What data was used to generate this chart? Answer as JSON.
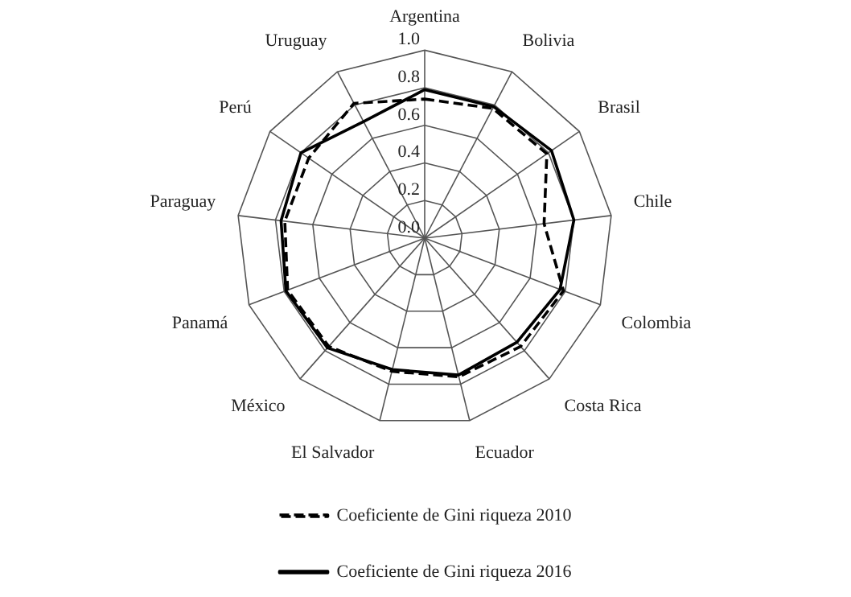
{
  "chart_data": {
    "type": "radar",
    "categories": [
      "Argentina",
      "Bolivia",
      "Brasil",
      "Chile",
      "Colombia",
      "Costa Rica",
      "Ecuador",
      "El Salvador",
      "México",
      "Panamá",
      "Paraguay",
      "Perú",
      "Uruguay"
    ],
    "series": [
      {
        "name": "Coeficiente de Gini riqueza 2010",
        "color": "#000000",
        "line_style": "dashed",
        "values": [
          0.74,
          0.78,
          0.79,
          0.64,
          0.79,
          0.77,
          0.76,
          0.73,
          0.77,
          0.78,
          0.75,
          0.75,
          0.81
        ]
      },
      {
        "name": "Coeficiente de Gini riqueza 2016",
        "color": "#000000",
        "line_style": "solid",
        "values": [
          0.79,
          0.79,
          0.82,
          0.8,
          0.77,
          0.74,
          0.75,
          0.72,
          0.78,
          0.79,
          0.77,
          0.8,
          0.7
        ]
      }
    ],
    "ylim": [
      0,
      1
    ],
    "yticks": [
      {
        "value": 0,
        "label": "0.0"
      },
      {
        "value": 0.2,
        "label": "0.2"
      },
      {
        "value": 0.4,
        "label": "0.4"
      },
      {
        "value": 0.6,
        "label": "0.6"
      },
      {
        "value": 0.8,
        "label": "0.8"
      },
      {
        "value": 1,
        "label": "1.0"
      }
    ],
    "grid": true,
    "legend": "bottom",
    "marker": "none"
  }
}
